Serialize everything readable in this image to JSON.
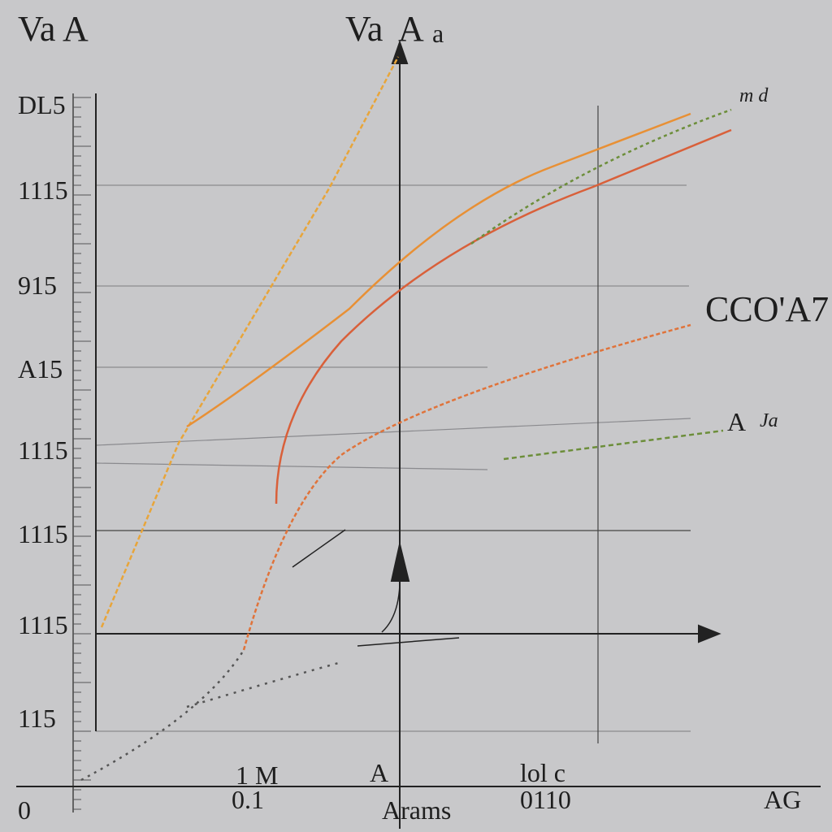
{
  "header": {
    "title_left": "Va A",
    "title_center": "Va",
    "title_center_axis": "A",
    "title_center_small": "a"
  },
  "labels": {
    "top_right": "m d",
    "right_upper": "CCO'A7",
    "right_lower_a": "A",
    "right_lower_b": "Ja"
  },
  "y_labels": [
    "DL5",
    "1115",
    "915",
    "A15",
    "1115",
    "1115",
    "1115",
    "115"
  ],
  "x_labels": {
    "origin": "0",
    "first_top": "1 M",
    "first": "0.1",
    "center": "A",
    "center_title": "Arams",
    "second_top": "lol c",
    "second": "0110",
    "end": "AG"
  }
}
